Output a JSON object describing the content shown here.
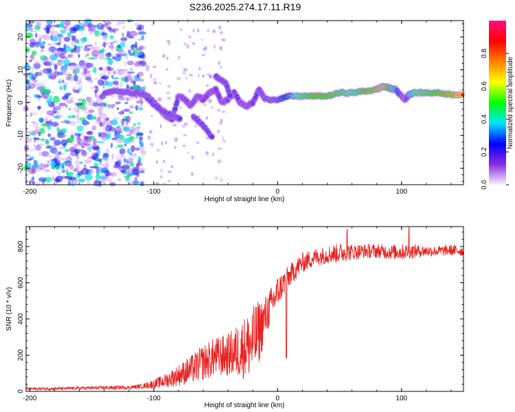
{
  "title": "S236.2025.274.17.11.R19",
  "chart_data": [
    {
      "type": "heatmap",
      "xlabel": "Height of straight line (km)",
      "ylabel": "Frequency (Hz)",
      "xlim": [
        -203,
        150
      ],
      "ylim": [
        -25,
        25
      ],
      "xticks": [
        -200,
        -100,
        0,
        100
      ],
      "xtick_labels": [
        "-200",
        "-100",
        "0",
        "100"
      ],
      "yticks": [
        -20,
        -10,
        0,
        10,
        20
      ],
      "ytick_labels": [
        "-20",
        "-10",
        "0",
        "10",
        "20"
      ],
      "colorbar": {
        "label": "Normalized spectral amplitude",
        "range": [
          0.0,
          1.0
        ],
        "ticks": [
          0.0,
          0.2,
          0.4,
          0.6,
          0.8
        ],
        "tick_labels": [
          "0.0",
          "0.2",
          "0.4",
          "0.6",
          "0.8"
        ],
        "colors": [
          "#f8f0ff",
          "#8a2be2",
          "#0000ff",
          "#00e5ff",
          "#00ff00",
          "#ffff00",
          "#ff8000",
          "#ff0000",
          "#ff1080"
        ]
      },
      "ridge": {
        "description_x": [
          -140,
          -130,
          -120,
          -112,
          -105,
          -100,
          -95,
          -90,
          -85,
          -80,
          -75,
          -70,
          -65,
          -60,
          -55,
          -50,
          -45,
          -40,
          -35,
          -30,
          -25,
          -20,
          -15,
          -10,
          0,
          10,
          20,
          30,
          40,
          50,
          60,
          70,
          80,
          85,
          90,
          95,
          100,
          103,
          106,
          110,
          120,
          130,
          140,
          150
        ],
        "frequency": [
          3,
          3.5,
          3,
          3,
          2,
          0,
          -2,
          -4,
          -5,
          2,
          1,
          -1,
          2,
          1,
          3,
          4,
          0,
          1,
          3,
          0,
          -1,
          0,
          4,
          1,
          1,
          2,
          2,
          2,
          2,
          3,
          3,
          3.5,
          4,
          5,
          4.5,
          4,
          2,
          1,
          2.5,
          3,
          3,
          3,
          2.5,
          2.5
        ],
        "amplitude": [
          0.3,
          0.35,
          0.35,
          0.3,
          0.3,
          0.3,
          0.4,
          0.35,
          0.3,
          0.3,
          0.25,
          0.3,
          0.3,
          0.25,
          0.25,
          0.2,
          0.2,
          0.25,
          0.2,
          0.2,
          0.2,
          0.25,
          0.3,
          0.35,
          0.4,
          0.55,
          0.7,
          0.75,
          0.75,
          0.7,
          0.65,
          0.75,
          0.8,
          0.85,
          0.75,
          0.6,
          0.4,
          0.35,
          0.6,
          0.65,
          0.7,
          0.75,
          0.8,
          0.9
        ]
      },
      "branches": [
        {
          "x": [
            -105,
            -95,
            -85,
            -78
          ],
          "frequency": [
            1,
            -2,
            -4,
            -5
          ]
        },
        {
          "x": [
            -68,
            -60,
            -52
          ],
          "frequency": [
            -4,
            -7,
            -11
          ]
        },
        {
          "x": [
            -50,
            -42,
            -38
          ],
          "frequency": [
            8,
            6,
            2
          ]
        }
      ]
    },
    {
      "type": "line",
      "xlabel": "Height of straight line (km)",
      "ylabel": "SNR (10 * v/v)",
      "xlim": [
        -203,
        150
      ],
      "ylim": [
        0,
        910
      ],
      "xticks": [
        -200,
        -100,
        0,
        100
      ],
      "xtick_labels": [
        "-200",
        "-100",
        "0",
        "100"
      ],
      "yticks": [
        0,
        200,
        400,
        600,
        800
      ],
      "ytick_labels": [
        "0",
        "200",
        "400",
        "600",
        "800"
      ],
      "color": "#e8201e",
      "envelope_x": [
        -203,
        -180,
        -160,
        -140,
        -120,
        -110,
        -100,
        -90,
        -80,
        -70,
        -60,
        -50,
        -40,
        -30,
        -20,
        -15,
        -10,
        -5,
        0,
        5,
        10,
        15,
        20,
        30,
        40,
        50,
        60,
        70,
        80,
        90,
        100,
        110,
        120,
        130,
        140,
        150
      ],
      "envelope_mean": [
        15,
        15,
        18,
        20,
        22,
        28,
        40,
        60,
        90,
        120,
        160,
        190,
        200,
        230,
        270,
        330,
        410,
        480,
        550,
        600,
        640,
        680,
        710,
        740,
        755,
        765,
        770,
        775,
        775,
        770,
        770,
        775,
        775,
        775,
        780,
        775
      ],
      "envelope_spread": [
        8,
        8,
        8,
        10,
        10,
        12,
        25,
        40,
        60,
        80,
        100,
        110,
        120,
        160,
        200,
        180,
        120,
        100,
        90,
        70,
        60,
        60,
        55,
        50,
        50,
        55,
        45,
        40,
        40,
        40,
        45,
        40,
        30,
        30,
        30,
        30
      ],
      "annotations": [
        {
          "x": 56,
          "y": 895,
          "note": "spike"
        },
        {
          "x": 106,
          "y": 905,
          "note": "spike"
        },
        {
          "x": 7,
          "y": 185,
          "note": "dip"
        }
      ]
    }
  ]
}
